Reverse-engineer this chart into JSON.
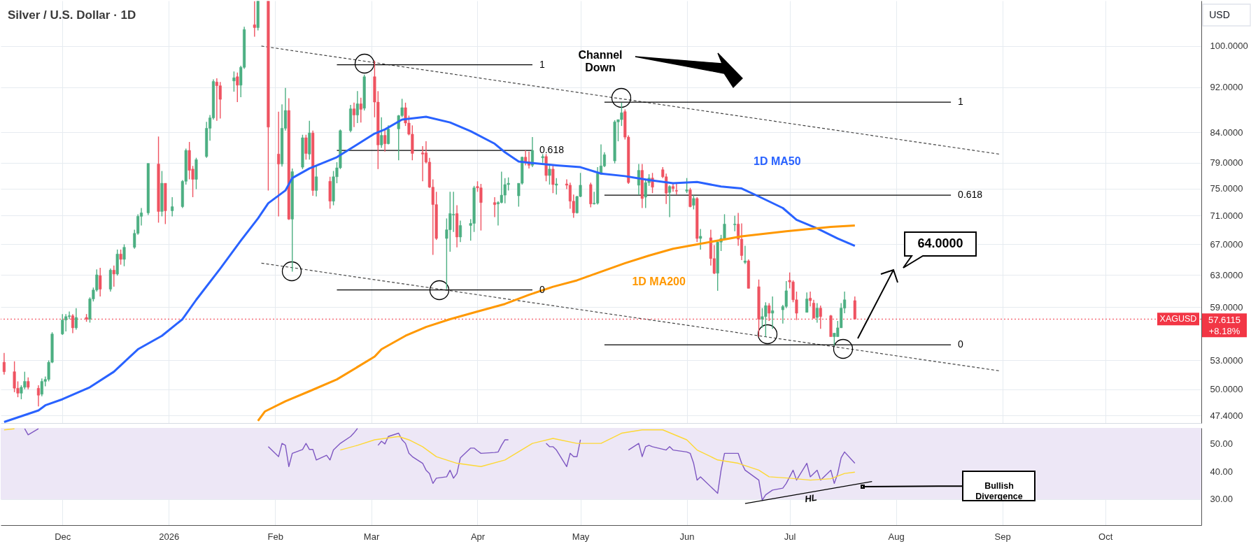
{
  "chart_data": [
    {
      "type": "candlestick",
      "title": "Silver / U.S. Dollar · 1D",
      "ylabel": "USD",
      "x": [
        "2025-11-14",
        "2025-11-17",
        "2025-11-18",
        "2025-11-19",
        "2025-11-20",
        "2025-11-21",
        "2025-11-24",
        "2025-11-25",
        "2025-11-26",
        "2025-11-27",
        "2025-11-28",
        "2025-12-01",
        "2025-12-02",
        "2025-12-03",
        "2025-12-04",
        "2025-12-05",
        "2025-12-08",
        "2025-12-09",
        "2025-12-10",
        "2025-12-11",
        "2025-12-12",
        "2025-12-15",
        "2025-12-16",
        "2025-12-17",
        "2025-12-18",
        "2025-12-19",
        "2025-12-22",
        "2025-12-23",
        "2025-12-24",
        "2025-12-26",
        "2025-12-29",
        "2025-12-30",
        "2025-12-31",
        "2026-01-02",
        "2026-01-05",
        "2026-01-06",
        "2026-01-07",
        "2026-01-08",
        "2026-01-09",
        "2026-01-12",
        "2026-01-13",
        "2026-01-14",
        "2026-01-15",
        "2026-01-16",
        "2026-01-20",
        "2026-01-21",
        "2026-01-22",
        "2026-01-23",
        "2026-01-26",
        "2026-01-27",
        "2026-01-30",
        "2026-02-02",
        "2026-02-03",
        "2026-02-04",
        "2026-02-05",
        "2026-02-06",
        "2026-02-09",
        "2026-02-10",
        "2026-02-11",
        "2026-02-12",
        "2026-02-13",
        "2026-02-17",
        "2026-02-18",
        "2026-02-19",
        "2026-02-20",
        "2026-02-23",
        "2026-02-24",
        "2026-02-25",
        "2026-02-26",
        "2026-02-27",
        "2026-03-02",
        "2026-03-03",
        "2026-03-04",
        "2026-03-05",
        "2026-03-06",
        "2026-03-09",
        "2026-03-10",
        "2026-03-11",
        "2026-03-12",
        "2026-03-13",
        "2026-03-16",
        "2026-03-17",
        "2026-03-18",
        "2026-03-19",
        "2026-03-20",
        "2026-03-23",
        "2026-03-24",
        "2026-03-25",
        "2026-03-26",
        "2026-03-27",
        "2026-03-30",
        "2026-03-31",
        "2026-04-01",
        "2026-04-02",
        "2026-04-06",
        "2026-04-07",
        "2026-04-08",
        "2026-04-09",
        "2026-04-10",
        "2026-04-13",
        "2026-04-14",
        "2026-04-15",
        "2026-04-16",
        "2026-04-17",
        "2026-04-20",
        "2026-04-21",
        "2026-04-22",
        "2026-04-23",
        "2026-04-24",
        "2026-04-27",
        "2026-04-28",
        "2026-04-29",
        "2026-04-30",
        "2026-05-01",
        "2026-05-04",
        "2026-05-05",
        "2026-05-06",
        "2026-05-07",
        "2026-05-08",
        "2026-05-11",
        "2026-05-12",
        "2026-05-13",
        "2026-05-14",
        "2026-05-15",
        "2026-05-18",
        "2026-05-19",
        "2026-05-20",
        "2026-05-21",
        "2026-05-22",
        "2026-05-25",
        "2026-05-26",
        "2026-05-27",
        "2026-05-28",
        "2026-05-29",
        "2026-06-01",
        "2026-06-02",
        "2026-06-03",
        "2026-06-04",
        "2026-06-05",
        "2026-06-08",
        "2026-06-09",
        "2026-06-10",
        "2026-06-11",
        "2026-06-12",
        "2026-06-15",
        "2026-06-16",
        "2026-06-17",
        "2026-06-18",
        "2026-06-19",
        "2026-06-22",
        "2026-06-23",
        "2026-06-24",
        "2026-06-25",
        "2026-06-26",
        "2026-06-29",
        "2026-06-30",
        "2026-07-01",
        "2026-07-02",
        "2026-07-03",
        "2026-07-06",
        "2026-07-07",
        "2026-07-08",
        "2026-07-09",
        "2026-07-10",
        "2026-07-13",
        "2026-07-14",
        "2026-07-15",
        "2026-07-16",
        "2026-07-17",
        "2026-07-20"
      ],
      "ohlc": [
        [
          52.8,
          53.8,
          51.5,
          51.8
        ],
        [
          51.8,
          52.9,
          49.7,
          50.1
        ],
        [
          50.1,
          50.8,
          49.2,
          49.6
        ],
        [
          49.6,
          50.4,
          49.0,
          50.2
        ],
        [
          50.2,
          51.8,
          50.0,
          50.8
        ],
        [
          50.8,
          51.2,
          50.0,
          50.2
        ],
        [
          50.1,
          50.4,
          48.3,
          49.4
        ],
        [
          49.5,
          51.1,
          49.3,
          50.8
        ],
        [
          50.8,
          51.3,
          50.3,
          51.0
        ],
        [
          51.0,
          53.0,
          50.8,
          52.8
        ],
        [
          52.8,
          56.1,
          52.7,
          55.9
        ],
        [
          55.9,
          58.2,
          55.8,
          57.5
        ],
        [
          57.5,
          58.2,
          56.2,
          57.9
        ],
        [
          57.9,
          58.5,
          57.6,
          58.0
        ],
        [
          58.0,
          58.2,
          56.0,
          56.6
        ],
        [
          56.6,
          58.9,
          56.4,
          57.8
        ],
        [
          57.8,
          58.2,
          57.3,
          57.6
        ],
        [
          57.6,
          60.2,
          57.2,
          60.0
        ],
        [
          60.0,
          61.4,
          59.7,
          61.1
        ],
        [
          61.1,
          63.7,
          60.9,
          63.0
        ],
        [
          62.9,
          63.9,
          60.3,
          61.2
        ],
        [
          61.2,
          63.8,
          60.9,
          63.6
        ],
        [
          63.6,
          64.2,
          61.5,
          63.1
        ],
        [
          63.1,
          66.3,
          62.9,
          65.7
        ],
        [
          65.7,
          66.3,
          64.3,
          65.0
        ],
        [
          65.0,
          67.0,
          64.1,
          66.6
        ],
        [
          66.6,
          69.0,
          66.4,
          68.5
        ],
        [
          68.5,
          71.2,
          68.3,
          70.9
        ],
        [
          70.9,
          72.1,
          69.6,
          71.4
        ],
        [
          71.4,
          78.9,
          71.1,
          78.9
        ],
        [
          78.8,
          83.3,
          70.0,
          71.6
        ],
        [
          71.6,
          77.7,
          70.9,
          75.8
        ],
        [
          75.8,
          75.8,
          69.8,
          71.7
        ],
        [
          71.7,
          73.7,
          70.9,
          72.3
        ],
        [
          72.3,
          76.3,
          72.1,
          76.1
        ],
        [
          76.1,
          81.3,
          75.6,
          81.0
        ],
        [
          81.0,
          82.4,
          76.4,
          77.8
        ],
        [
          78.0,
          78.5,
          73.7,
          76.4
        ],
        [
          76.4,
          79.8,
          74.9,
          79.5
        ],
        [
          80.0,
          85.8,
          79.8,
          84.7
        ],
        [
          84.7,
          87.0,
          82.6,
          86.5
        ],
        [
          86.5,
          93.5,
          86.2,
          93.1
        ],
        [
          93.0,
          93.7,
          86.0,
          92.3
        ],
        [
          92.3,
          93.0,
          86.4,
          89.8
        ],
        [
          93.2,
          95.0,
          91.2,
          93.8
        ],
        [
          94.0,
          94.8,
          89.3,
          92.4
        ],
        [
          92.4,
          96.1,
          90.2,
          95.8
        ],
        [
          95.8,
          104.0,
          95.5,
          103.4
        ],
        [
          104.4,
          109.5,
          101.9,
          103.8
        ],
        [
          103.8,
          109.5,
          103.2,
          109.5
        ],
        [
          109.5,
          109.5,
          74.7,
          84.9
        ],
        [
          80.4,
          87.6,
          70.9,
          78.8
        ],
        [
          78.8,
          88.9,
          78.4,
          84.7
        ],
        [
          84.7,
          91.9,
          84.3,
          87.8
        ],
        [
          87.8,
          90.0,
          70.4,
          70.5
        ],
        [
          70.5,
          78.1,
          63.4,
          77.6
        ],
        [
          78.3,
          83.6,
          78.0,
          83.1
        ],
        [
          83.1,
          83.6,
          79.5,
          80.5
        ],
        [
          80.4,
          86.0,
          79.5,
          83.9
        ],
        [
          83.9,
          84.3,
          73.9,
          74.7
        ],
        [
          74.7,
          78.6,
          73.8,
          76.8
        ],
        [
          76.1,
          76.8,
          72.0,
          73.1
        ],
        [
          73.1,
          77.7,
          72.5,
          76.8
        ],
        [
          76.8,
          79.1,
          75.8,
          78.2
        ],
        [
          78.2,
          84.5,
          78.0,
          84.3
        ],
        [
          84.3,
          88.8,
          84.0,
          88.1
        ],
        [
          88.1,
          89.2,
          84.9,
          87.0
        ],
        [
          87.0,
          91.3,
          85.6,
          89.0
        ],
        [
          89.0,
          90.1,
          85.7,
          88.0
        ],
        [
          88.2,
          94.4,
          87.8,
          94.0
        ],
        [
          94.0,
          97.1,
          86.6,
          89.3
        ],
        [
          89.3,
          91.3,
          78.0,
          81.9
        ],
        [
          81.9,
          86.6,
          81.4,
          83.5
        ],
        [
          83.5,
          84.6,
          80.8,
          82.1
        ],
        [
          82.1,
          85.2,
          82.0,
          84.6
        ],
        [
          84.6,
          87.0,
          79.4,
          86.9
        ],
        [
          86.9,
          89.9,
          86.6,
          88.3
        ],
        [
          88.3,
          89.2,
          85.1,
          85.6
        ],
        [
          85.6,
          86.9,
          83.5,
          83.7
        ],
        [
          83.7,
          85.2,
          79.4,
          80.5
        ],
        [
          80.6,
          81.7,
          76.1,
          80.4
        ],
        [
          80.6,
          82.5,
          78.9,
          79.1
        ],
        [
          79.1,
          79.8,
          75.1,
          75.2
        ],
        [
          75.2,
          76.4,
          65.6,
          72.6
        ],
        [
          72.6,
          74.5,
          67.6,
          67.8
        ],
        [
          67.8,
          70.6,
          61.2,
          69.0
        ],
        [
          69.0,
          74.5,
          66.0,
          71.3
        ],
        [
          71.1,
          74.5,
          68.7,
          71.2
        ],
        [
          71.3,
          72.5,
          66.6,
          68.0
        ],
        [
          68.0,
          70.3,
          67.3,
          69.6
        ],
        [
          69.6,
          70.5,
          67.5,
          69.9
        ],
        [
          69.9,
          75.4,
          68.7,
          75.1
        ],
        [
          75.3,
          76.1,
          74.5,
          75.1
        ],
        [
          75.1,
          75.7,
          68.9,
          72.9
        ],
        [
          72.9,
          73.7,
          70.8,
          72.6
        ],
        [
          72.7,
          73.1,
          69.6,
          72.9
        ],
        [
          72.9,
          77.6,
          72.8,
          74.0
        ],
        [
          74.0,
          76.6,
          72.8,
          75.6
        ],
        [
          75.6,
          76.7,
          74.7,
          75.8
        ],
        [
          73.9,
          75.8,
          72.3,
          75.8
        ],
        [
          75.8,
          80.0,
          75.6,
          79.9
        ],
        [
          79.9,
          81.0,
          78.6,
          79.2
        ],
        [
          79.2,
          80.8,
          78.1,
          78.6
        ],
        [
          78.6,
          83.2,
          78.3,
          81.0
        ],
        [
          79.8,
          80.4,
          79.0,
          80.0
        ],
        [
          80.0,
          80.4,
          76.1,
          77.0
        ],
        [
          77.0,
          78.6,
          75.6,
          78.0
        ],
        [
          78.0,
          78.6,
          74.3,
          75.6
        ],
        [
          75.5,
          76.6,
          74.1,
          75.7
        ],
        [
          75.7,
          76.4,
          74.9,
          75.5
        ],
        [
          75.5,
          75.9,
          72.0,
          73.1
        ],
        [
          73.1,
          74.1,
          70.7,
          71.4
        ],
        [
          71.4,
          73.9,
          71.3,
          73.8
        ],
        [
          73.8,
          77.4,
          73.7,
          75.5
        ],
        [
          75.6,
          75.9,
          72.2,
          72.7
        ],
        [
          72.7,
          74.5,
          72.6,
          72.8
        ],
        [
          72.8,
          78.3,
          72.6,
          77.3
        ],
        [
          77.3,
          82.0,
          77.1,
          78.5
        ],
        [
          78.5,
          80.7,
          78.3,
          80.3
        ],
        [
          79.3,
          86.1,
          78.9,
          85.8
        ],
        [
          85.8,
          86.2,
          82.5,
          86.2
        ],
        [
          86.2,
          89.2,
          85.1,
          87.4
        ],
        [
          87.6,
          88.0,
          82.8,
          83.2
        ],
        [
          83.2,
          83.5,
          75.7,
          75.9
        ],
        [
          75.5,
          78.8,
          74.0,
          77.8
        ],
        [
          77.8,
          78.8,
          72.1,
          73.5
        ],
        [
          73.7,
          76.3,
          72.1,
          75.9
        ],
        [
          75.9,
          77.2,
          75.4,
          76.6
        ],
        [
          76.6,
          77.4,
          74.3,
          75.2
        ],
        [
          77.9,
          78.3,
          76.6,
          76.8
        ],
        [
          76.8,
          77.3,
          72.7,
          74.3
        ],
        [
          74.4,
          75.5,
          70.8,
          75.3
        ],
        [
          75.3,
          75.9,
          74.5,
          75.0
        ],
        [
          74.7,
          75.8,
          74.1,
          74.6
        ],
        [
          74.6,
          76.6,
          74.3,
          74.8
        ],
        [
          74.8,
          75.1,
          72.2,
          72.3
        ],
        [
          72.5,
          74.0,
          71.9,
          73.5
        ],
        [
          73.5,
          73.7,
          67.3,
          67.8
        ],
        [
          67.8,
          69.1,
          66.3,
          68.1
        ],
        [
          67.9,
          69.0,
          64.2,
          65.1
        ],
        [
          65.1,
          66.9,
          63.1,
          63.2
        ],
        [
          63.2,
          67.4,
          61.0,
          67.3
        ],
        [
          67.3,
          68.3,
          66.1,
          67.8
        ],
        [
          67.8,
          71.2,
          67.6,
          69.8
        ],
        [
          69.7,
          71.0,
          68.8,
          69.8
        ],
        [
          69.8,
          71.4,
          66.8,
          67.7
        ],
        [
          67.7,
          69.9,
          64.9,
          65.5
        ],
        [
          64.6,
          66.8,
          64.4,
          64.8
        ],
        [
          64.8,
          65.0,
          61.3,
          61.3
        ],
        [
          61.5,
          62.4,
          55.6,
          57.6
        ],
        [
          57.6,
          58.9,
          56.6,
          57.9
        ],
        [
          57.9,
          59.6,
          55.6,
          59.2
        ],
        [
          59.2,
          59.5,
          57.4,
          58.3
        ],
        [
          58.3,
          60.3,
          56.5,
          58.6
        ],
        [
          58.7,
          59.3,
          57.1,
          59.1
        ],
        [
          59.1,
          62.2,
          58.9,
          61.0
        ],
        [
          62.3,
          63.3,
          61.3,
          62.1
        ],
        [
          62.1,
          62.3,
          59.6,
          59.9
        ],
        [
          59.9,
          60.9,
          57.5,
          58.3
        ],
        [
          58.4,
          60.8,
          58.4,
          60.0
        ],
        [
          60.1,
          60.9,
          59.1,
          59.8
        ],
        [
          59.5,
          59.9,
          57.7,
          57.7
        ],
        [
          57.8,
          59.5,
          57.2,
          58.9
        ],
        [
          58.9,
          59.2,
          56.5,
          57.9
        ],
        [
          58.0,
          58.1,
          55.6,
          55.6
        ],
        [
          55.6,
          56.0,
          54.6,
          56.0
        ],
        [
          55.6,
          57.4,
          55.6,
          56.6
        ],
        [
          56.6,
          59.5,
          56.6,
          58.9
        ],
        [
          58.9,
          60.9,
          58.3,
          59.9
        ],
        [
          59.8,
          60.3,
          57.6,
          57.6115
        ]
      ],
      "series": [
        {
          "name": "1D MA50",
          "type": "line",
          "color": "#2962ff",
          "x": [
            "2025-11-14",
            "2025-11-24",
            "2025-11-26",
            "2025-12-01",
            "2025-12-09",
            "2025-12-16",
            "2025-12-23",
            "2025-12-30",
            "2026-01-05",
            "2026-01-09",
            "2026-01-16",
            "2026-01-22",
            "2026-01-27",
            "2026-01-30",
            "2026-02-04",
            "2026-02-06",
            "2026-02-11",
            "2026-02-19",
            "2026-03-02",
            "2026-03-05",
            "2026-03-10",
            "2026-03-17",
            "2026-03-24",
            "2026-03-30",
            "2026-04-06",
            "2026-04-09",
            "2026-04-13",
            "2026-04-16",
            "2026-04-24",
            "2026-05-01",
            "2026-05-07",
            "2026-05-14",
            "2026-05-21",
            "2026-05-28",
            "2026-06-04",
            "2026-06-11",
            "2026-06-17",
            "2026-06-22",
            "2026-06-29",
            "2026-07-03",
            "2026-07-09",
            "2026-07-15",
            "2026-07-20"
          ],
          "values": [
            46.8,
            47.9,
            48.4,
            49.0,
            50.2,
            51.8,
            54.2,
            55.7,
            57.6,
            59.9,
            63.8,
            67.5,
            70.6,
            72.8,
            74.7,
            76.6,
            78.1,
            79.9,
            83.8,
            84.5,
            86.2,
            86.7,
            85.7,
            84.2,
            82.1,
            80.7,
            79.2,
            79.0,
            78.6,
            78.3,
            77.3,
            76.9,
            76.3,
            75.8,
            76.0,
            75.3,
            75.0,
            73.8,
            72.1,
            70.4,
            69.2,
            67.8,
            66.8
          ]
        },
        {
          "name": "1D MA200",
          "type": "line",
          "color": "#ff9800",
          "x": [
            "2026-01-27",
            "2026-01-29",
            "2026-02-04",
            "2026-02-11",
            "2026-02-19",
            "2026-03-02",
            "2026-03-04",
            "2026-03-11",
            "2026-03-17",
            "2026-03-24",
            "2026-04-01",
            "2026-04-09",
            "2026-04-16",
            "2026-04-23",
            "2026-04-30",
            "2026-05-07",
            "2026-05-14",
            "2026-05-21",
            "2026-05-28",
            "2026-06-04",
            "2026-06-17",
            "2026-06-30",
            "2026-07-13",
            "2026-07-20"
          ],
          "values": [
            46.9,
            47.8,
            48.8,
            49.8,
            51.0,
            53.4,
            54.2,
            55.7,
            56.7,
            57.6,
            58.5,
            59.4,
            60.5,
            61.5,
            62.3,
            63.4,
            64.5,
            65.5,
            66.4,
            67.0,
            68.1,
            68.8,
            69.4,
            69.6
          ]
        },
        {
          "type": "line",
          "color": "#444444",
          "line_style": "dashed",
          "x": [
            "2026-01-28",
            "2026-08-31"
          ],
          "values": [
            100.0,
            80.4
          ]
        },
        {
          "type": "line",
          "color": "#444444",
          "line_style": "dashed",
          "x": [
            "2026-01-28",
            "2026-08-31"
          ],
          "values": [
            64.5,
            51.9
          ]
        },
        {
          "name": "1",
          "type": "line",
          "color": "#000000",
          "x": [
            "2026-02-19",
            "2026-04-17"
          ],
          "values": [
            96.3,
            96.3
          ]
        },
        {
          "name": "0.618",
          "type": "line",
          "color": "#000000",
          "x": [
            "2026-02-19",
            "2026-04-17"
          ],
          "values": [
            81.0,
            81.0
          ]
        },
        {
          "name": "0",
          "type": "line",
          "color": "#000000",
          "x": [
            "2026-02-19",
            "2026-04-17"
          ],
          "values": [
            61.1,
            61.1
          ]
        },
        {
          "name": "1",
          "type": "line",
          "color": "#000000",
          "x": [
            "2026-05-08",
            "2026-08-17"
          ],
          "values": [
            89.3,
            89.3
          ]
        },
        {
          "name": "0.618",
          "type": "line",
          "color": "#000000",
          "x": [
            "2026-05-08",
            "2026-08-17"
          ],
          "values": [
            74.0,
            74.0
          ]
        },
        {
          "name": "0",
          "type": "line",
          "color": "#000000",
          "x": [
            "2026-05-08",
            "2026-08-17"
          ],
          "values": [
            54.7,
            54.7
          ]
        }
      ],
      "ref_lines": [
        {
          "axis": "y",
          "value": 57.6115,
          "label": "XAGUSD",
          "color": "#f23645",
          "line_style": "dotted"
        }
      ],
      "annotations": [
        "Channel Down",
        "64.0000",
        "57.6115",
        "+8.18%"
      ],
      "xlim": [
        "2025-11-13",
        "2026-10-29"
      ],
      "ylim": [
        46.7,
        109.6
      ],
      "log": true,
      "xticks": [
        {
          "value": "2025-12-01",
          "label": null
        },
        {
          "value": "2026-01-01",
          "label": null
        },
        {
          "value": "2026-02-01",
          "label": null
        },
        {
          "value": "2026-03-01",
          "label": null
        },
        {
          "value": "2026-04-01",
          "label": null
        },
        {
          "value": "2026-05-01",
          "label": null
        },
        {
          "value": "2026-06-01",
          "label": null
        },
        {
          "value": "2026-07-01",
          "label": null
        },
        {
          "value": "2026-08-01",
          "label": null
        },
        {
          "value": "2026-09-01",
          "label": null
        },
        {
          "value": "2026-10-01",
          "label": null
        }
      ],
      "yticks": [
        {
          "value": 47.4,
          "label": "47.4000"
        },
        {
          "value": 50,
          "label": "50.0000"
        },
        {
          "value": 53,
          "label": "53.0000"
        },
        {
          "value": 59,
          "label": "59.0000"
        },
        {
          "value": 63,
          "label": "63.0000"
        },
        {
          "value": 67,
          "label": "67.0000"
        },
        {
          "value": 71,
          "label": "71.0000"
        },
        {
          "value": 75,
          "label": "75.0000"
        },
        {
          "value": 79,
          "label": "79.0000"
        },
        {
          "value": 84,
          "label": "84.0000"
        },
        {
          "value": 92,
          "label": "92.0000"
        },
        {
          "value": 100,
          "label": "100.0000"
        }
      ],
      "grid": true,
      "tick_labels": "y"
    },
    {
      "type": "line",
      "series": [
        {
          "type": "line",
          "color": "#7e57c2",
          "x": [
            "2025-11-20",
            "2025-11-21",
            "2025-11-24",
            "2025-11-25",
            "2026-01-29",
            "2026-01-30",
            "2026-02-02",
            "2026-02-03",
            "2026-02-04",
            "2026-02-05",
            "2026-02-06",
            "2026-02-09",
            "2026-02-10",
            "2026-02-11",
            "2026-02-12",
            "2026-02-13",
            "2026-02-16",
            "2026-02-17",
            "2026-02-18",
            "2026-02-19",
            "2026-02-20",
            "2026-02-23",
            "2026-02-24",
            "2026-02-25",
            "2026-02-26",
            "2026-02-27",
            "2026-03-02",
            "2026-03-03",
            "2026-03-04",
            "2026-03-05",
            "2026-03-06",
            "2026-03-09",
            "2026-03-10",
            "2026-03-11",
            "2026-03-12",
            "2026-03-13",
            "2026-03-16",
            "2026-03-17",
            "2026-03-18",
            "2026-03-19",
            "2026-03-20",
            "2026-03-23",
            "2026-03-24",
            "2026-03-25",
            "2026-03-26",
            "2026-03-27",
            "2026-03-30",
            "2026-03-31",
            "2026-04-01",
            "2026-04-02",
            "2026-04-06",
            "2026-04-07",
            "2026-04-08",
            "2026-04-09",
            "2026-04-10",
            "2026-04-13",
            "2026-04-14",
            "2026-04-20",
            "2026-04-21",
            "2026-04-22",
            "2026-04-23",
            "2026-04-24",
            "2026-04-27",
            "2026-04-28",
            "2026-04-29",
            "2026-04-30",
            "2026-05-01",
            "2026-05-04",
            "2026-05-05",
            "2026-05-14",
            "2026-05-15",
            "2026-05-18",
            "2026-05-19",
            "2026-05-20",
            "2026-05-21",
            "2026-05-22",
            "2026-05-26",
            "2026-05-27",
            "2026-05-28",
            "2026-06-01",
            "2026-06-02",
            "2026-06-03",
            "2026-06-04",
            "2026-06-05",
            "2026-06-09",
            "2026-06-10",
            "2026-06-11",
            "2026-06-12",
            "2026-06-16",
            "2026-06-17",
            "2026-06-18",
            "2026-06-22",
            "2026-06-23",
            "2026-06-24",
            "2026-06-26",
            "2026-06-29",
            "2026-06-30",
            "2026-07-02",
            "2026-07-03",
            "2026-07-06",
            "2026-07-07",
            "2026-07-08",
            "2026-07-09",
            "2026-07-10",
            "2026-07-13",
            "2026-07-14",
            "2026-07-15",
            "2026-07-16",
            "2026-07-17",
            "2026-07-20"
          ],
          "values": [
            55.5,
            53.3,
            55.5,
            null,
            null,
            49.0,
            45.4,
            50.2,
            49.5,
            41.8,
            46.6,
            48.0,
            50.2,
            48.0,
            48.0,
            44.2,
            45.9,
            44.2,
            47.8,
            49.0,
            50.2,
            52.7,
            54.0,
            55.6,
            null,
            null,
            null,
            49.5,
            51.0,
            50.0,
            52.7,
            53.9,
            51.5,
            50.2,
            46.6,
            45.4,
            43.0,
            40.5,
            39.3,
            35.7,
            37.6,
            38.1,
            40.5,
            37.6,
            39.3,
            45.0,
            48.5,
            48.5,
            47.5,
            46.6,
            46.9,
            47.1,
            49.5,
            51.5,
            51.5,
            null,
            null,
            null,
            50.2,
            49.0,
            49.0,
            47.8,
            41.8,
            46.6,
            45.4,
            45.4,
            51.5,
            null,
            null,
            null,
            47.8,
            50.2,
            45.4,
            49.0,
            49.5,
            49.0,
            47.8,
            49.0,
            47.8,
            47.1,
            46.6,
            43.0,
            36.9,
            38.1,
            33.3,
            32.1,
            40.5,
            46.6,
            46.6,
            43.0,
            40.5,
            36.9,
            29.6,
            31.6,
            33.3,
            34.0,
            35.7,
            40.5,
            36.9,
            43.0,
            38.1,
            39.3,
            40.5,
            36.9,
            40.5,
            35.7,
            39.3,
            45.0,
            47.1,
            43.0
          ]
        },
        {
          "type": "line",
          "color": "#fdd835",
          "x": [
            "2025-11-14",
            "2025-11-17",
            "2025-11-18",
            "2026-02-12",
            "2026-02-20",
            "2026-02-25",
            "2026-03-02",
            "2026-03-09",
            "2026-03-12",
            "2026-03-16",
            "2026-03-20",
            "2026-03-26",
            "2026-04-02",
            "2026-04-09",
            "2026-04-17",
            "2026-04-23",
            "2026-04-30",
            "2026-05-07",
            "2026-05-13",
            "2026-05-19",
            "2026-05-25",
            "2026-06-01",
            "2026-06-04",
            "2026-06-10",
            "2026-06-16",
            "2026-06-22",
            "2026-06-25",
            "2026-07-01",
            "2026-07-07",
            "2026-07-13",
            "2026-07-17",
            "2026-07-20"
          ],
          "values": [
            55.1,
            55.5,
            null,
            null,
            47.8,
            49.5,
            51.5,
            52.7,
            51.5,
            49.0,
            45.4,
            43.0,
            41.8,
            44.2,
            50.2,
            52.0,
            50.2,
            50.2,
            53.9,
            55.1,
            55.1,
            51.5,
            47.8,
            44.2,
            43.0,
            40.5,
            38.1,
            37.6,
            36.9,
            37.4,
            39.3,
            39.8
          ]
        },
        {
          "type": "line",
          "color": "#000000",
          "x": [
            "2026-06-18",
            "2026-07-25"
          ],
          "values": [
            28.4,
            36.4
          ]
        }
      ],
      "bands": [
        {
          "axis": "y",
          "from": 30,
          "to": 55.8,
          "color": "#ede7f6"
        }
      ],
      "annotations": [
        "HL",
        "Bullish Divergence"
      ],
      "xlim": [
        "2025-11-13",
        "2026-10-29"
      ],
      "ylim": [
        20.6,
        55.8
      ],
      "xticks": [
        {
          "value": "2025-12-01",
          "label": "Dec"
        },
        {
          "value": "2026-01-01",
          "label": "2026"
        },
        {
          "value": "2026-02-01",
          "label": "Feb"
        },
        {
          "value": "2026-03-01",
          "label": "Mar"
        },
        {
          "value": "2026-04-01",
          "label": "Apr"
        },
        {
          "value": "2026-05-01",
          "label": "May"
        },
        {
          "value": "2026-06-01",
          "label": "Jun"
        },
        {
          "value": "2026-07-01",
          "label": "Jul"
        },
        {
          "value": "2026-08-01",
          "label": "Aug"
        },
        {
          "value": "2026-09-01",
          "label": "Sep"
        },
        {
          "value": "2026-10-01",
          "label": "Oct"
        }
      ],
      "yticks": [
        {
          "value": 30,
          "label": "30.00"
        },
        {
          "value": 40,
          "label": "40.00"
        },
        {
          "value": 50,
          "label": "50.00"
        }
      ],
      "grid": true
    }
  ]
}
